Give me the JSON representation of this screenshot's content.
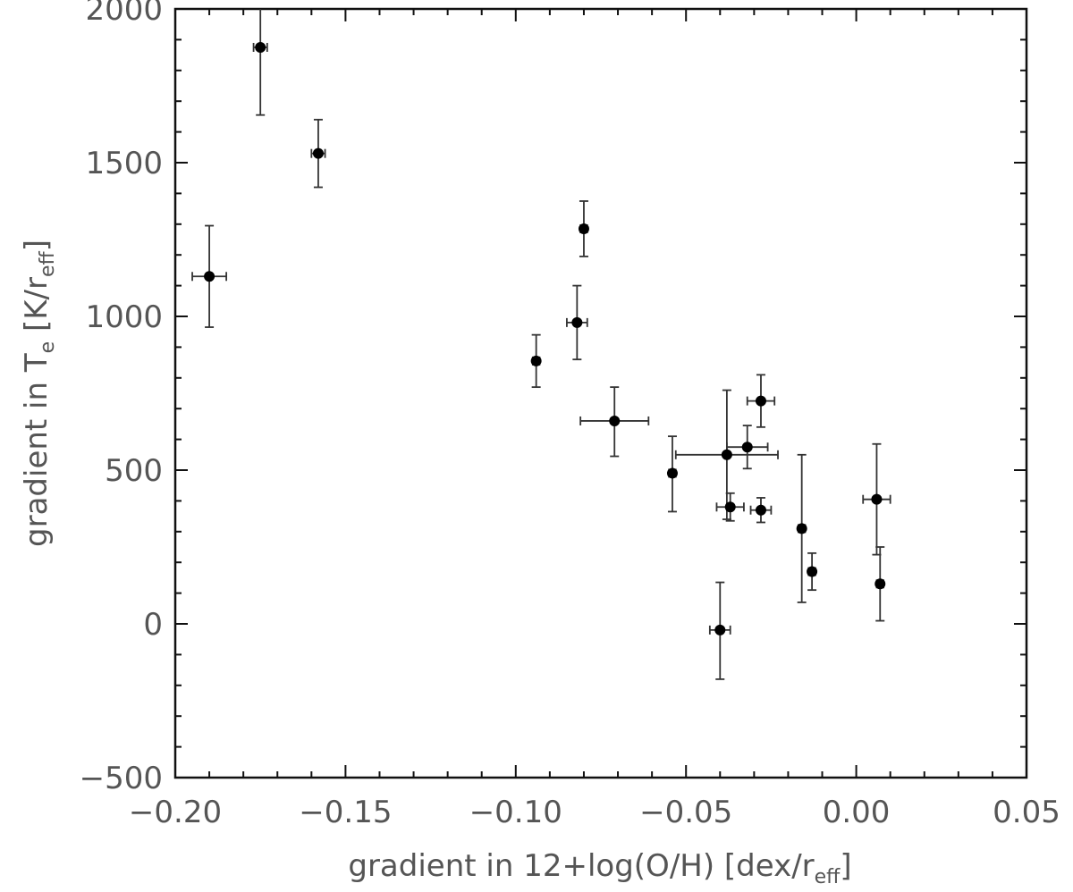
{
  "chart_data": {
    "type": "scatter",
    "xlabel_parts": [
      "gradient in 12+log(O/H) [dex/r",
      "eff",
      "]"
    ],
    "ylabel_parts": [
      "gradient in T",
      "e",
      " [K/r",
      "eff",
      "]"
    ],
    "xlim": [
      -0.2,
      0.05
    ],
    "ylim": [
      -500,
      2000
    ],
    "xticks": [
      -0.2,
      -0.15,
      -0.1,
      -0.05,
      0.0,
      0.05
    ],
    "xtick_labels": [
      "−0.20",
      "−0.15",
      "−0.10",
      "−0.05",
      "0.00",
      "0.05"
    ],
    "yticks": [
      -500,
      0,
      500,
      1000,
      1500,
      2000
    ],
    "ytick_labels": [
      "−500",
      "0",
      "500",
      "1000",
      "1500",
      "2000"
    ],
    "x_minor_step": 0.01,
    "y_minor_step": 100,
    "grid": false,
    "points": [
      {
        "x": -0.19,
        "xerr": 0.005,
        "y": 1130,
        "yerr_lo": 165,
        "yerr_hi": 165
      },
      {
        "x": -0.175,
        "xerr": 0.002,
        "y": 1875,
        "yerr_lo": 220,
        "yerr_hi": 140
      },
      {
        "x": -0.158,
        "xerr": 0.002,
        "y": 1530,
        "yerr_lo": 110,
        "yerr_hi": 110
      },
      {
        "x": -0.094,
        "xerr": 0.001,
        "y": 855,
        "yerr_lo": 85,
        "yerr_hi": 85
      },
      {
        "x": -0.082,
        "xerr": 0.003,
        "y": 980,
        "yerr_lo": 120,
        "yerr_hi": 120
      },
      {
        "x": -0.08,
        "xerr": 0.001,
        "y": 1285,
        "yerr_lo": 90,
        "yerr_hi": 90
      },
      {
        "x": -0.071,
        "xerr": 0.01,
        "y": 660,
        "yerr_lo": 115,
        "yerr_hi": 110
      },
      {
        "x": -0.054,
        "xerr": 0.001,
        "y": 490,
        "yerr_lo": 125,
        "yerr_hi": 120
      },
      {
        "x": -0.04,
        "xerr": 0.003,
        "y": -20,
        "yerr_lo": 160,
        "yerr_hi": 155
      },
      {
        "x": -0.038,
        "xerr": 0.015,
        "y": 550,
        "yerr_lo": 210,
        "yerr_hi": 210
      },
      {
        "x": -0.037,
        "xerr": 0.004,
        "y": 380,
        "yerr_lo": 45,
        "yerr_hi": 45
      },
      {
        "x": -0.032,
        "xerr": 0.006,
        "y": 575,
        "yerr_lo": 70,
        "yerr_hi": 70
      },
      {
        "x": -0.028,
        "xerr": 0.004,
        "y": 725,
        "yerr_lo": 85,
        "yerr_hi": 85
      },
      {
        "x": -0.028,
        "xerr": 0.003,
        "y": 370,
        "yerr_lo": 40,
        "yerr_hi": 40
      },
      {
        "x": -0.016,
        "xerr": 0.001,
        "y": 310,
        "yerr_lo": 240,
        "yerr_hi": 240
      },
      {
        "x": -0.013,
        "xerr": 0.001,
        "y": 170,
        "yerr_lo": 60,
        "yerr_hi": 60
      },
      {
        "x": 0.006,
        "xerr": 0.004,
        "y": 405,
        "yerr_lo": 180,
        "yerr_hi": 180
      },
      {
        "x": 0.007,
        "xerr": 0.001,
        "y": 130,
        "yerr_lo": 120,
        "yerr_hi": 120
      }
    ]
  }
}
